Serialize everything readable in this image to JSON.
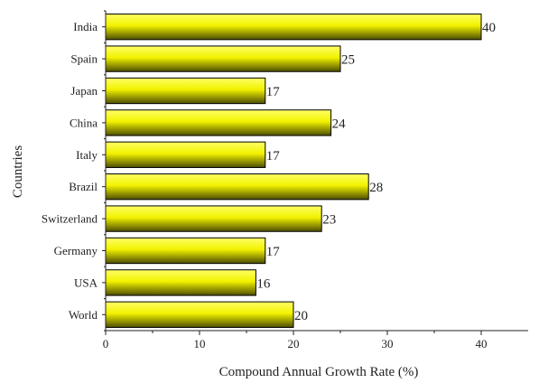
{
  "chart_data": {
    "type": "bar",
    "orientation": "horizontal",
    "title": "",
    "xlabel": "Compound Annual Growth Rate (%)",
    "ylabel": "Countries",
    "xlim": [
      0,
      45
    ],
    "xticks": [
      "0",
      "10",
      "20",
      "30",
      "40"
    ],
    "categories": [
      "India",
      "Spain",
      "Japan",
      "China",
      "Italy",
      "Brazil",
      "Switzerland",
      "Germany",
      "USA",
      "World"
    ],
    "values": [
      40,
      25,
      17,
      24,
      17,
      28,
      23,
      17,
      16,
      20
    ],
    "value_labels": [
      "40",
      "25",
      "17",
      "24",
      "17",
      "28",
      "23",
      "17",
      "16",
      "20"
    ],
    "bar_color_light": "#ffff66",
    "bar_color_mid": "#f2f200",
    "bar_color_dark": "#4d4d00",
    "bar_edge_color": "#000000",
    "grid": false,
    "legend": "none"
  }
}
